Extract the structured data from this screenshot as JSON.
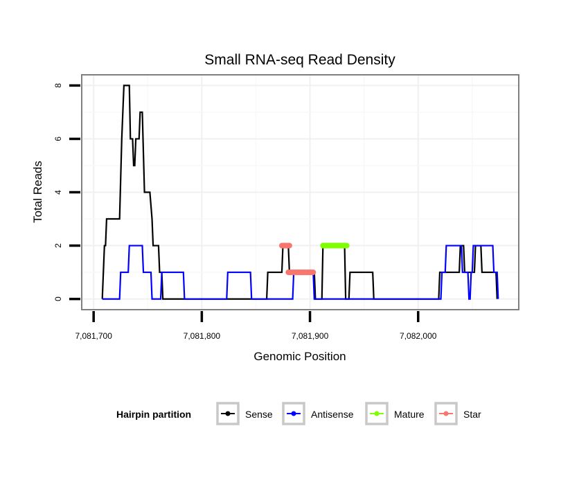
{
  "chart_data": {
    "type": "line",
    "title": "Small RNA-seq Read Density",
    "xlabel": "Genomic Position",
    "ylabel": "Total Reads",
    "xlim": [
      7081689,
      7082093
    ],
    "ylim": [
      -0.4,
      8.4
    ],
    "x_ticks": [
      7081700,
      7081800,
      7081900,
      7082000
    ],
    "x_tick_labels": [
      "7,081,700",
      "7,081,800",
      "7,081,900",
      "7,082,000"
    ],
    "y_ticks": [
      0,
      2,
      4,
      6,
      8
    ],
    "y_tick_labels": [
      "0",
      "2",
      "4",
      "6",
      "8"
    ],
    "grid": true,
    "legend": {
      "title": "Hairpin partition",
      "placement": "bottom",
      "entries": [
        "Sense",
        "Antisense",
        "Mature",
        "Star"
      ]
    },
    "series": [
      {
        "name": "Sense",
        "color": "#000000",
        "points": [
          [
            7081708,
            0
          ],
          [
            7081710,
            2
          ],
          [
            7081711,
            2
          ],
          [
            7081712,
            3
          ],
          [
            7081724,
            3
          ],
          [
            7081726,
            6
          ],
          [
            7081728,
            8
          ],
          [
            7081733,
            8
          ],
          [
            7081734,
            6
          ],
          [
            7081736,
            6
          ],
          [
            7081737,
            5
          ],
          [
            7081738,
            5
          ],
          [
            7081739,
            6
          ],
          [
            7081742,
            6
          ],
          [
            7081743,
            7
          ],
          [
            7081745,
            7
          ],
          [
            7081747,
            4
          ],
          [
            7081752,
            4
          ],
          [
            7081754,
            3
          ],
          [
            7081755,
            2
          ],
          [
            7081760,
            2
          ],
          [
            7081761,
            1
          ],
          [
            7081763,
            1
          ],
          [
            7081764,
            0
          ],
          [
            7081860,
            0
          ],
          [
            7081861,
            1
          ],
          [
            7081874,
            1
          ],
          [
            7081875,
            2
          ],
          [
            7081880,
            2
          ],
          [
            7081881,
            1
          ],
          [
            7081904,
            1
          ],
          [
            7081905,
            0
          ],
          [
            7081911,
            0
          ],
          [
            7081912,
            2
          ],
          [
            7081932,
            2
          ],
          [
            7081933,
            0
          ],
          [
            7081936,
            0
          ],
          [
            7081937,
            1
          ],
          [
            7081958,
            1
          ],
          [
            7081959,
            0
          ],
          [
            7082019,
            0
          ],
          [
            7082020,
            1
          ],
          [
            7082038,
            1
          ],
          [
            7082039,
            2
          ],
          [
            7082042,
            2
          ],
          [
            7082043,
            1
          ],
          [
            7082052,
            1
          ],
          [
            7082053,
            2
          ],
          [
            7082058,
            2
          ],
          [
            7082059,
            1
          ],
          [
            7082072,
            1
          ],
          [
            7082073,
            0
          ]
        ]
      },
      {
        "name": "Antisense",
        "color": "#0000ff",
        "points": [
          [
            7081708,
            0
          ],
          [
            7081724,
            0
          ],
          [
            7081725,
            1
          ],
          [
            7081732,
            1
          ],
          [
            7081733,
            2
          ],
          [
            7081745,
            2
          ],
          [
            7081746,
            1
          ],
          [
            7081753,
            1
          ],
          [
            7081754,
            0
          ],
          [
            7081762,
            0
          ],
          [
            7081763,
            1
          ],
          [
            7081783,
            1
          ],
          [
            7081784,
            0
          ],
          [
            7081823,
            0
          ],
          [
            7081824,
            1
          ],
          [
            7081845,
            1
          ],
          [
            7081846,
            0
          ],
          [
            7081884,
            0
          ],
          [
            7081885,
            1
          ],
          [
            7081903,
            1
          ],
          [
            7081904,
            0
          ],
          [
            7082021,
            0
          ],
          [
            7082022,
            1
          ],
          [
            7082025,
            1
          ],
          [
            7082026,
            2
          ],
          [
            7082040,
            2
          ],
          [
            7082041,
            1
          ],
          [
            7082046,
            1
          ],
          [
            7082047,
            0
          ],
          [
            7082048,
            0
          ],
          [
            7082049,
            1
          ],
          [
            7082050,
            1
          ],
          [
            7082051,
            2
          ],
          [
            7082069,
            2
          ],
          [
            7082070,
            1
          ],
          [
            7082073,
            1
          ],
          [
            7082074,
            0
          ]
        ]
      },
      {
        "name": "Mature",
        "color": "#7fff00",
        "segments": [
          [
            [
              7081912,
              2
            ],
            [
              7081934,
              2
            ]
          ]
        ]
      },
      {
        "name": "Star",
        "color": "#f8766d",
        "segments": [
          [
            [
              7081874,
              2
            ],
            [
              7081881,
              2
            ]
          ],
          [
            [
              7081880,
              1
            ],
            [
              7081903,
              1
            ]
          ]
        ]
      }
    ]
  }
}
